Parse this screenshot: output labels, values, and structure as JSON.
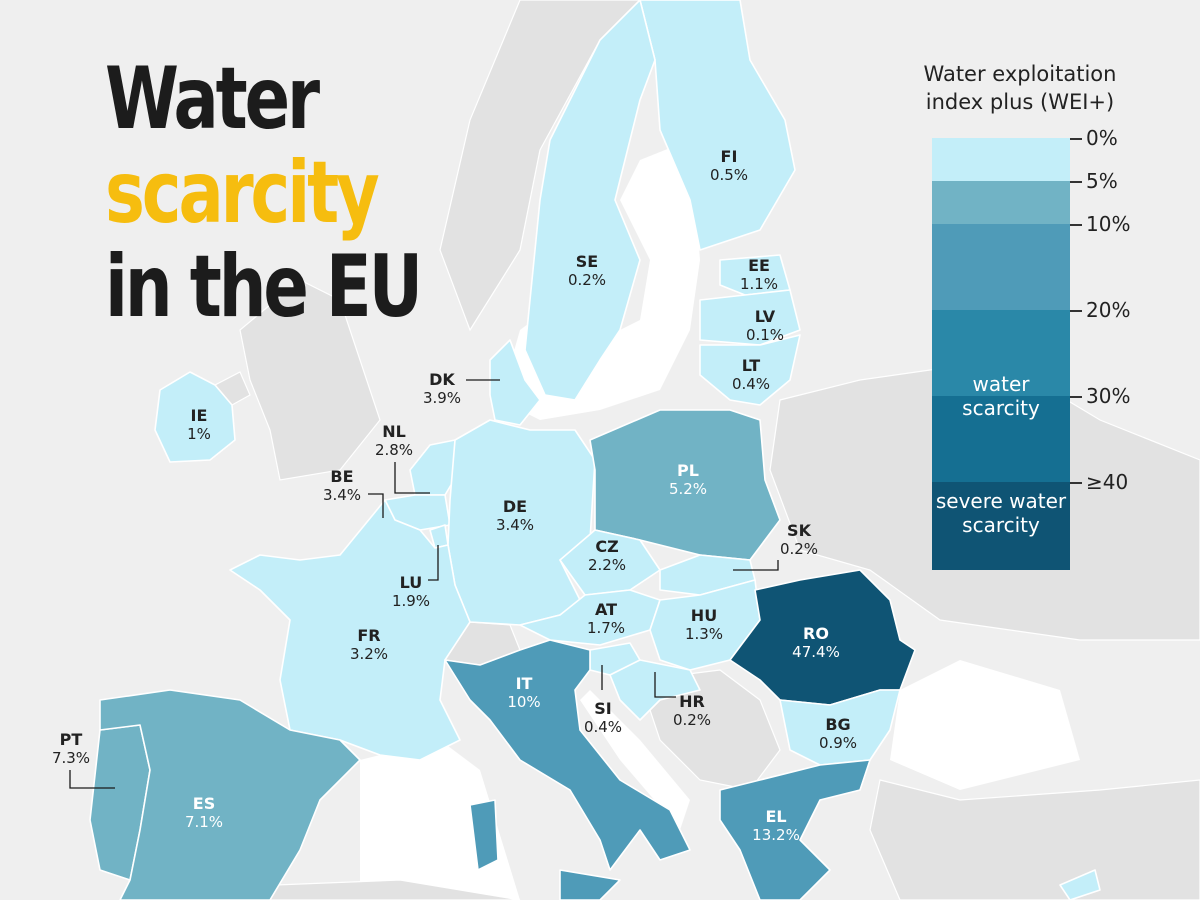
{
  "title": {
    "line1": "Water",
    "line2": "scarcity",
    "line3": "in the EU"
  },
  "legend": {
    "title_line1": "Water exploitation",
    "title_line2": "index plus (WEI+)",
    "ticks": [
      "0%",
      "5%",
      "10%",
      "20%",
      "30%",
      "≥40"
    ],
    "band_water": "water scarcity",
    "band_severe": "severe water scarcity",
    "colors": {
      "band_0_5": "#c3eef9",
      "band_5_10": "#71b3c5",
      "band_10_20": "#4f9bb8",
      "band_20_30": "#2a88a8",
      "band_30_40": "#156f92",
      "band_40_plus": "#0f5474"
    }
  },
  "colors": {
    "accent_title": "#f6bd0f",
    "background": "#efefef",
    "non_eu_land": "#e2e2e2"
  },
  "countries": {
    "FI": {
      "code": "FI",
      "value": "0.5%"
    },
    "SE": {
      "code": "SE",
      "value": "0.2%"
    },
    "EE": {
      "code": "EE",
      "value": "1.1%"
    },
    "LV": {
      "code": "LV",
      "value": "0.1%"
    },
    "LT": {
      "code": "LT",
      "value": "0.4%"
    },
    "DK": {
      "code": "DK",
      "value": "3.9%"
    },
    "IE": {
      "code": "IE",
      "value": "1%"
    },
    "NL": {
      "code": "NL",
      "value": "2.8%"
    },
    "BE": {
      "code": "BE",
      "value": "3.4%"
    },
    "DE": {
      "code": "DE",
      "value": "3.4%"
    },
    "PL": {
      "code": "PL",
      "value": "5.2%"
    },
    "CZ": {
      "code": "CZ",
      "value": "2.2%"
    },
    "SK": {
      "code": "SK",
      "value": "0.2%"
    },
    "LU": {
      "code": "LU",
      "value": "1.9%"
    },
    "AT": {
      "code": "AT",
      "value": "1.7%"
    },
    "HU": {
      "code": "HU",
      "value": "1.3%"
    },
    "RO": {
      "code": "RO",
      "value": "47.4%"
    },
    "FR": {
      "code": "FR",
      "value": "3.2%"
    },
    "IT": {
      "code": "IT",
      "value": "10%"
    },
    "SI": {
      "code": "SI",
      "value": "0.4%"
    },
    "HR": {
      "code": "HR",
      "value": "0.2%"
    },
    "BG": {
      "code": "BG",
      "value": "0.9%"
    },
    "PT": {
      "code": "PT",
      "value": "7.3%"
    },
    "ES": {
      "code": "ES",
      "value": "7.1%"
    },
    "EL": {
      "code": "EL",
      "value": "13.2%"
    }
  }
}
